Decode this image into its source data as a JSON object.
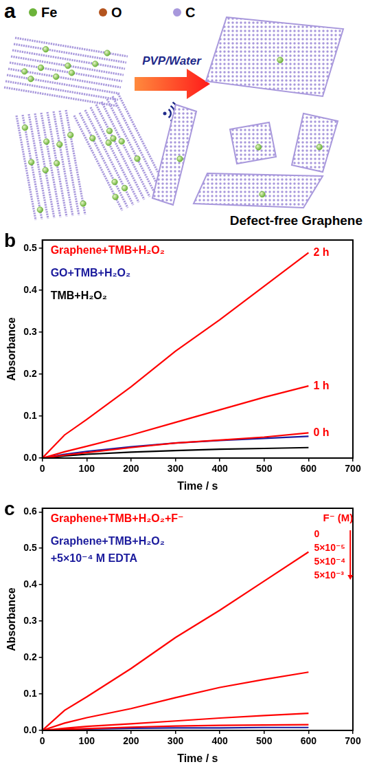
{
  "diagram": {
    "panel_label": "a",
    "legend": [
      {
        "text": "Fe",
        "color": "#6cb33a"
      },
      {
        "text": "O",
        "color": "#b4541e"
      },
      {
        "text": "C",
        "color": "#a898dc"
      }
    ],
    "arrow_text": "PVP/Water",
    "caption": "Defect-free Graphene"
  },
  "chart_data": [
    {
      "panel_label": "b",
      "type": "line",
      "xlabel": "Time / s",
      "ylabel": "Absorbance",
      "x": [
        0,
        50,
        100,
        200,
        300,
        400,
        500,
        600
      ],
      "xlim": [
        0,
        700
      ],
      "xticks": [
        0,
        100,
        200,
        300,
        400,
        500,
        600,
        700
      ],
      "ylim": [
        0,
        0.52
      ],
      "yticks": [
        {
          "value": 0,
          "label": "0.0"
        },
        0.1,
        0.2,
        0.3,
        0.4,
        0.5
      ],
      "grid": false,
      "legend": "upper left",
      "series": [
        {
          "name": "Graphene+TMB+H₂O₂",
          "end_label": "2 h",
          "color": "#ff0000",
          "values": [
            0,
            0.055,
            0.092,
            0.17,
            0.255,
            0.33,
            0.41,
            0.49
          ]
        },
        {
          "name": "Graphene+TMB+H₂O₂",
          "end_label": "1 h",
          "color": "#ff0000",
          "values": [
            0,
            0.015,
            0.028,
            0.055,
            0.085,
            0.115,
            0.145,
            0.172
          ]
        },
        {
          "name": "Graphene+TMB+H₂O₂",
          "end_label": "0 h",
          "color": "#ff0000",
          "values": [
            0,
            0.007,
            0.013,
            0.025,
            0.036,
            0.043,
            0.05,
            0.06
          ]
        },
        {
          "name": "GO+TMB+H₂O₂",
          "color": "#1a1a9c",
          "values": [
            0,
            0.009,
            0.016,
            0.027,
            0.036,
            0.042,
            0.047,
            0.052
          ]
        },
        {
          "name": "TMB+H₂O₂",
          "color": "#000000",
          "values": [
            0,
            0.005,
            0.009,
            0.014,
            0.018,
            0.021,
            0.023,
            0.025
          ]
        }
      ]
    },
    {
      "panel_label": "c",
      "type": "line",
      "xlabel": "Time / s",
      "ylabel": "Absorbance",
      "x": [
        0,
        50,
        100,
        200,
        300,
        400,
        500,
        600
      ],
      "xlim": [
        0,
        700
      ],
      "xticks": [
        0,
        100,
        200,
        300,
        400,
        500,
        600,
        700
      ],
      "ylim": [
        0,
        0.61
      ],
      "yticks": [
        {
          "value": 0,
          "label": "0.0"
        },
        0.1,
        0.2,
        0.3,
        0.4,
        0.5,
        0.6
      ],
      "grid": false,
      "legend": "upper left",
      "annotation": {
        "title": "F⁻ (M)",
        "items": [
          "0",
          "5×10⁻⁵",
          "5×10⁻⁴",
          "5×10⁻³"
        ]
      },
      "series": [
        {
          "name": "Graphene+TMB+H₂O₂+F⁻",
          "color": "#ff0000",
          "values": [
            0,
            0.055,
            0.092,
            0.17,
            0.255,
            0.33,
            0.41,
            0.49
          ]
        },
        {
          "name": "Graphene+TMB+H₂O₂+F⁻",
          "color": "#ff0000",
          "values": [
            0,
            0.02,
            0.035,
            0.06,
            0.09,
            0.118,
            0.14,
            0.16
          ]
        },
        {
          "name": "Graphene+TMB+H₂O₂+F⁻",
          "color": "#ff0000",
          "values": [
            0,
            0.006,
            0.011,
            0.018,
            0.026,
            0.034,
            0.041,
            0.047
          ]
        },
        {
          "name": "Graphene+TMB+H₂O₂+F⁻",
          "color": "#ff0000",
          "values": [
            0,
            0.003,
            0.005,
            0.009,
            0.012,
            0.014,
            0.015,
            0.016
          ]
        },
        {
          "name": "Graphene+TMB+H₂O₂ +5×10⁻⁴ M EDTA",
          "color": "#1a1a9c",
          "values": [
            0,
            0.003,
            0.004,
            0.006,
            0.007,
            0.007,
            0.008,
            0.008
          ]
        }
      ]
    }
  ]
}
